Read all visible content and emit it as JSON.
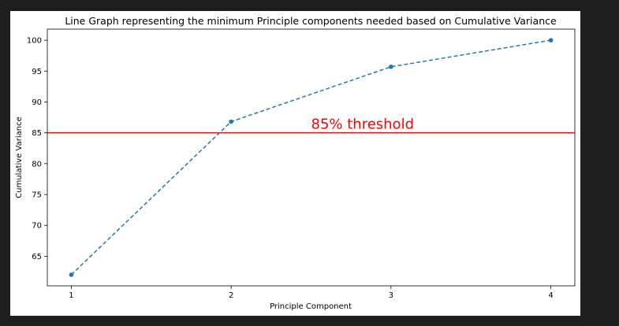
{
  "chart_data": {
    "type": "line",
    "title": "Line Graph representing the minimum Principle components needed based on Cumulative Variance",
    "xlabel": "Principle Component",
    "ylabel": "Cumulative Variance",
    "x": [
      1,
      2,
      3,
      4
    ],
    "x_tick_labels": [
      "1",
      "2",
      "3",
      "4"
    ],
    "y_ticks": [
      65,
      70,
      75,
      80,
      85,
      90,
      95,
      100
    ],
    "xlim": [
      0.85,
      4.15
    ],
    "ylim": [
      60.2,
      101.8
    ],
    "series": [
      {
        "values": [
          62.0,
          86.8,
          95.7,
          100.0
        ],
        "color": "#1f77b4",
        "line_style": "dashed",
        "marker": "circle"
      }
    ],
    "threshold": {
      "y": 85,
      "color": "#ff0000",
      "label": "85% threshold",
      "label_x": 2.5
    },
    "grid": false,
    "legend": "none"
  }
}
